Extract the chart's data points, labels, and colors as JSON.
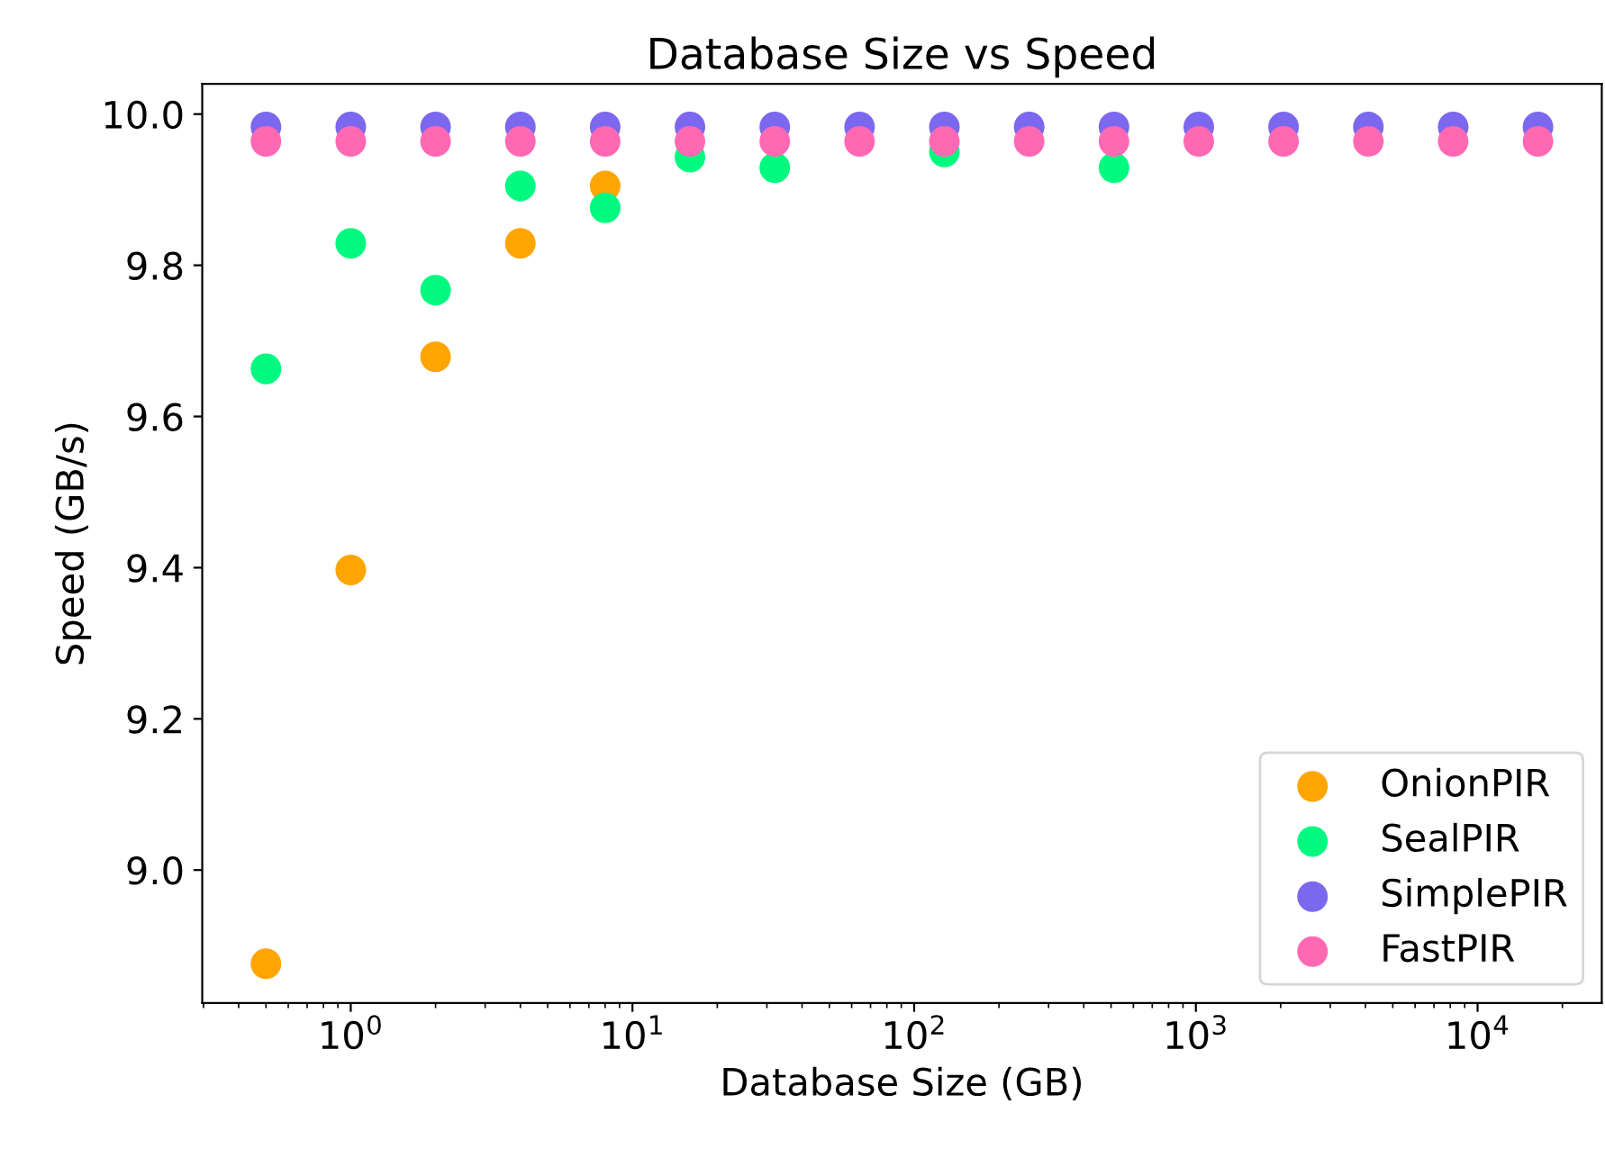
{
  "chart_data": {
    "type": "scatter",
    "title": "Database Size vs Speed",
    "xlabel": "Database Size (GB)",
    "ylabel": "Speed (GB/s)",
    "x": [
      0.5,
      1,
      2,
      4,
      8,
      16,
      32,
      64,
      128,
      256,
      512,
      1024,
      2048,
      4096,
      8192,
      16384
    ],
    "log": "x",
    "xlim": [
      0.297,
      27600
    ],
    "xticks": [
      {
        "value": 1,
        "label": "10$^{0}$"
      },
      {
        "value": 10,
        "label": "10$^{1}$"
      },
      {
        "value": 100,
        "label": "10$^{2}$"
      },
      {
        "value": 1000,
        "label": "10$^{3}$"
      },
      {
        "value": 10000,
        "label": "10$^{4}$"
      }
    ],
    "ylim": [
      8.824,
      10.04
    ],
    "yticks": [
      {
        "value": 9.0,
        "label": "9.0"
      },
      {
        "value": 9.2,
        "label": "9.2"
      },
      {
        "value": 9.4,
        "label": "9.4"
      },
      {
        "value": 9.6,
        "label": "9.6"
      },
      {
        "value": 9.8,
        "label": "9.8"
      },
      {
        "value": 10.0,
        "label": "10.0"
      }
    ],
    "legend": "lower right",
    "marker": "circle",
    "grid": false,
    "series": [
      {
        "name": "OnionPIR",
        "color": "#ffa500",
        "values": [
          8.876,
          9.397,
          9.679,
          9.829,
          9.905,
          null,
          null,
          null,
          null,
          null,
          null,
          null,
          null,
          null,
          null,
          null
        ]
      },
      {
        "name": "SealPIR",
        "color": "#00fa7f",
        "values": [
          9.663,
          9.829,
          9.767,
          9.905,
          9.876,
          9.943,
          9.929,
          null,
          9.95,
          null,
          9.929,
          null,
          null,
          null,
          null,
          null
        ]
      },
      {
        "name": "SimplePIR",
        "color": "#7b68ee",
        "values": [
          9.983,
          9.983,
          9.983,
          9.983,
          9.983,
          9.983,
          9.983,
          9.983,
          9.983,
          9.983,
          9.983,
          9.983,
          9.983,
          9.983,
          9.983,
          9.983
        ]
      },
      {
        "name": "FastPIR",
        "color": "#ff69b4",
        "values": [
          9.964,
          9.964,
          9.964,
          9.964,
          9.964,
          9.964,
          9.964,
          9.964,
          9.964,
          9.964,
          9.964,
          9.964,
          9.964,
          9.964,
          9.964,
          9.964
        ]
      }
    ]
  }
}
